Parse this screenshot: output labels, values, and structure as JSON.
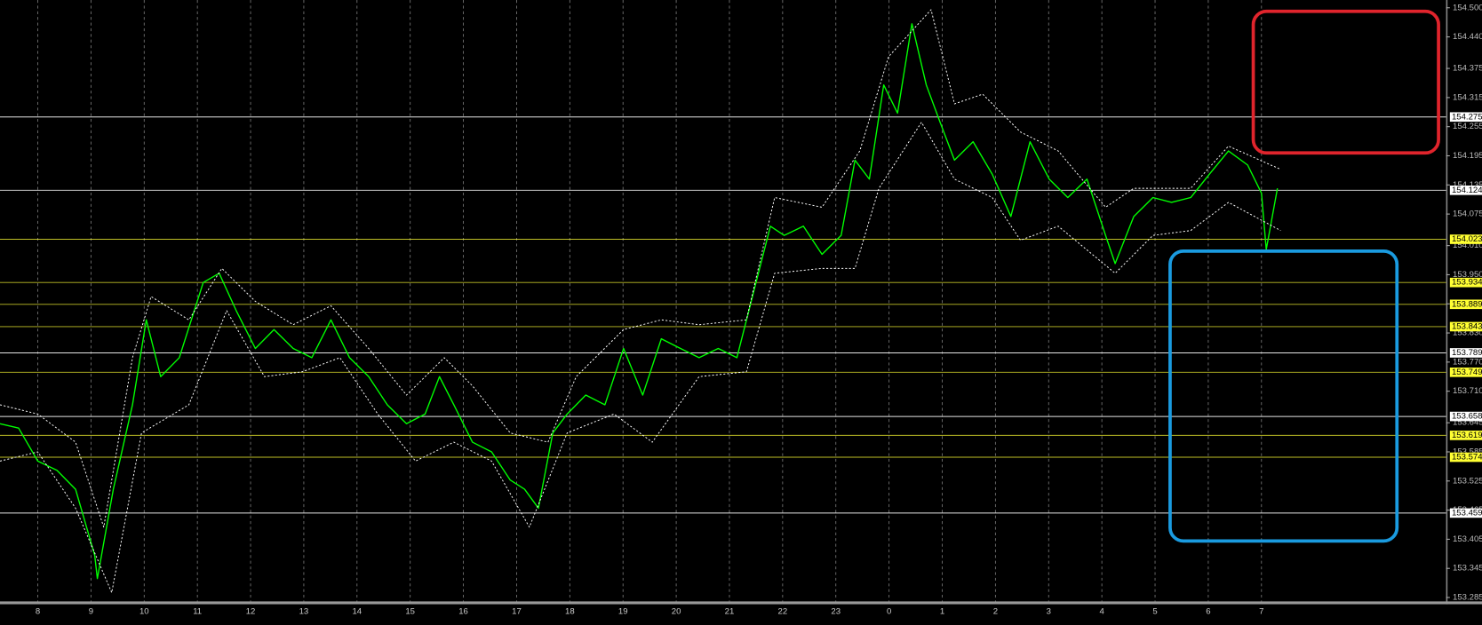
{
  "chart_data": {
    "type": "line",
    "xlim": [
      -0.71,
      26.47
    ],
    "ylim": [
      153.275,
      154.516
    ],
    "grid": true,
    "xticks": [
      {
        "value": 0,
        "label": "8"
      },
      {
        "value": 1,
        "label": "9"
      },
      {
        "value": 2,
        "label": "10"
      },
      {
        "value": 3,
        "label": "11"
      },
      {
        "value": 4,
        "label": "12"
      },
      {
        "value": 5,
        "label": "13"
      },
      {
        "value": 6,
        "label": "14"
      },
      {
        "value": 7,
        "label": "15"
      },
      {
        "value": 8,
        "label": "16"
      },
      {
        "value": 9,
        "label": "17"
      },
      {
        "value": 10,
        "label": "18"
      },
      {
        "value": 11,
        "label": "19"
      },
      {
        "value": 12,
        "label": "20"
      },
      {
        "value": 13,
        "label": "21"
      },
      {
        "value": 14,
        "label": "22"
      },
      {
        "value": 15,
        "label": "23"
      },
      {
        "value": 16,
        "label": "0"
      },
      {
        "value": 17,
        "label": "1"
      },
      {
        "value": 18,
        "label": "2"
      },
      {
        "value": 19,
        "label": "3"
      },
      {
        "value": 20,
        "label": "4"
      },
      {
        "value": 21,
        "label": "5"
      },
      {
        "value": 22,
        "label": "6"
      },
      {
        "value": 23,
        "label": "7"
      }
    ],
    "yticks": [
      {
        "value": 154.5,
        "label": "154.500"
      },
      {
        "value": 154.44,
        "label": "154.440"
      },
      154.375,
      154.315,
      154.255,
      154.195,
      154.135,
      154.075,
      {
        "value": 154.01,
        "label": "154.010"
      },
      {
        "value": 153.95,
        "label": "153.950"
      },
      {
        "value": 153.89,
        "label": "153.890"
      },
      {
        "value": 153.83,
        "label": "153.830"
      },
      {
        "value": 153.77,
        "label": "153.770"
      },
      {
        "value": 153.71,
        "label": "153.710"
      },
      153.645,
      153.585,
      153.525,
      153.465,
      153.405,
      153.345,
      153.285
    ],
    "levels": [
      154.275,
      154.124,
      154.023,
      153.934,
      153.889,
      153.843,
      153.789,
      153.749,
      153.658,
      153.619,
      153.574,
      153.459
    ],
    "level_colors": [
      "#ffffff",
      "#ffffff",
      "#ffff33",
      "#ffff33",
      "#ffff33",
      "#ffff33",
      "#ffffff",
      "#ffff33",
      "#ffffff",
      "#ffff33",
      "#ffff33",
      "#ffffff"
    ],
    "series": [
      {
        "color": "#00ff00",
        "style": "solid",
        "x": [
          -0.71,
          -0.36,
          0,
          0.36,
          0.71,
          1.07,
          1.12,
          1.42,
          1.78,
          2.04,
          2.31,
          2.66,
          3.11,
          3.41,
          3.73,
          4.09,
          4.44,
          4.8,
          5.15,
          5.51,
          5.86,
          6.22,
          6.57,
          6.93,
          7.28,
          7.55,
          7.82,
          8.17,
          8.53,
          8.88,
          9.15,
          9.41,
          9.68,
          9.95,
          10.3,
          10.66,
          11.01,
          11.37,
          11.72,
          12.08,
          12.43,
          12.79,
          13.14,
          13.5,
          13.77,
          14.03,
          14.39,
          14.74,
          15.1,
          15.36,
          15.63,
          15.9,
          16.16,
          16.43,
          16.7,
          16.96,
          17.23,
          17.58,
          17.94,
          18.29,
          18.65,
          19.01,
          19.36,
          19.72,
          20.07,
          20.25,
          20.6,
          20.96,
          21.31,
          21.67,
          22.02,
          22.38,
          22.74,
          23.0,
          23.09,
          23.3
        ],
        "values": [
          153.643,
          153.634,
          153.566,
          153.547,
          153.508,
          153.372,
          153.324,
          153.508,
          153.682,
          153.857,
          153.74,
          153.779,
          153.934,
          153.953,
          153.876,
          153.798,
          153.837,
          153.798,
          153.779,
          153.857,
          153.779,
          153.74,
          153.682,
          153.643,
          153.663,
          153.74,
          153.682,
          153.605,
          153.585,
          153.527,
          153.508,
          153.469,
          153.624,
          153.663,
          153.702,
          153.682,
          153.798,
          153.702,
          153.818,
          153.798,
          153.779,
          153.798,
          153.779,
          153.934,
          154.05,
          154.031,
          154.05,
          153.992,
          154.031,
          154.186,
          154.147,
          154.341,
          154.283,
          154.467,
          154.341,
          154.264,
          154.186,
          154.224,
          154.157,
          154.07,
          154.224,
          154.147,
          154.109,
          154.147,
          154.031,
          153.973,
          154.07,
          154.109,
          154.099,
          154.109,
          154.157,
          154.205,
          154.176,
          154.118,
          154.002,
          154.128
        ]
      },
      {
        "color": "#ffffff",
        "style": "dotted",
        "x": [
          -0.71,
          0,
          0.71,
          1.24,
          1.78,
          2.13,
          2.84,
          3.46,
          4.09,
          4.8,
          5.51,
          6.22,
          6.93,
          7.64,
          8.17,
          8.88,
          9.59,
          10.12,
          11.01,
          11.72,
          12.43,
          13.32,
          13.85,
          14.74,
          15.45,
          15.99,
          16.79,
          17.23,
          17.76,
          18.47,
          19.18,
          20.07,
          20.6,
          21.67,
          22.38,
          23.36
        ],
        "values": [
          153.682,
          153.663,
          153.605,
          153.43,
          153.779,
          153.905,
          153.857,
          153.963,
          153.895,
          153.847,
          153.886,
          153.798,
          153.702,
          153.779,
          153.721,
          153.624,
          153.605,
          153.74,
          153.837,
          153.857,
          153.847,
          153.857,
          154.109,
          154.089,
          154.205,
          154.399,
          154.496,
          154.302,
          154.322,
          154.244,
          154.205,
          154.089,
          154.128,
          154.128,
          154.215,
          154.167
        ]
      },
      {
        "color": "#ffffff",
        "style": "dotted",
        "x": [
          -0.71,
          0,
          0.71,
          1.39,
          1.95,
          2.84,
          3.55,
          4.26,
          4.97,
          5.68,
          6.39,
          7.1,
          7.82,
          8.53,
          9.24,
          9.95,
          10.83,
          11.55,
          12.43,
          13.32,
          13.85,
          14.74,
          15.36,
          15.81,
          16.61,
          17.23,
          17.94,
          18.47,
          19.18,
          20.25,
          20.96,
          21.67,
          22.38,
          23.36
        ],
        "values": [
          153.566,
          153.585,
          153.469,
          153.295,
          153.624,
          153.682,
          153.876,
          153.74,
          153.75,
          153.779,
          153.663,
          153.566,
          153.605,
          153.566,
          153.43,
          153.624,
          153.663,
          153.605,
          153.74,
          153.75,
          153.953,
          153.963,
          153.963,
          154.128,
          154.264,
          154.147,
          154.109,
          154.021,
          154.05,
          153.953,
          154.031,
          154.041,
          154.099,
          154.041
        ]
      }
    ]
  }
}
